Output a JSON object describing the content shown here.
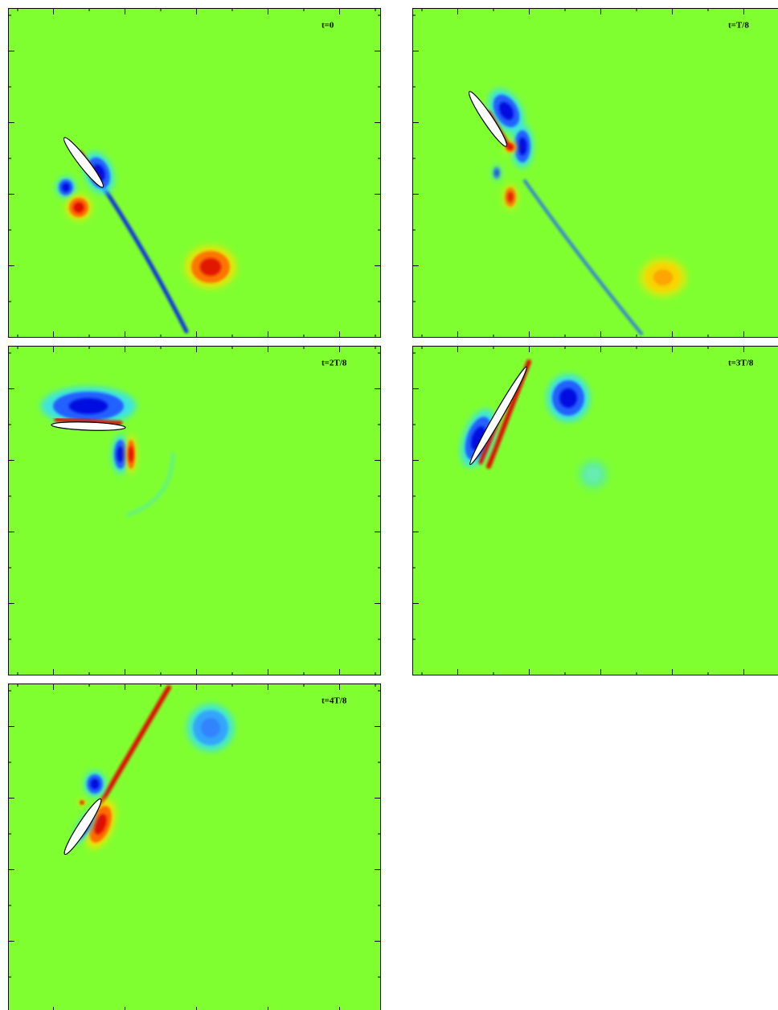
{
  "panels": [
    {
      "label": "t=0"
    },
    {
      "label": "t=T/8"
    },
    {
      "label": "t=2T/8"
    },
    {
      "label": "t=3T/8"
    },
    {
      "label": "t=4T/8"
    }
  ]
}
